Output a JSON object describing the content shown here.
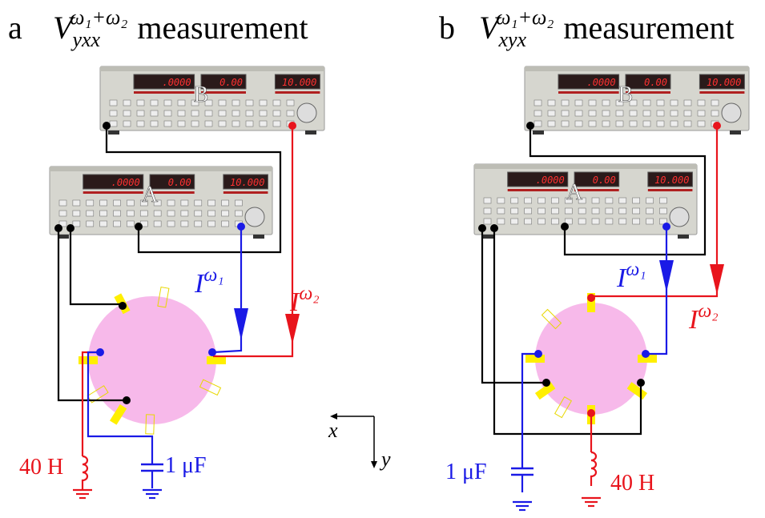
{
  "panels": [
    {
      "label": "a",
      "title": {
        "symbol": "V",
        "subscript": "yxx",
        "superscript": "ω₁+ω₂",
        "text": "measurement"
      },
      "instruments": [
        {
          "label": "B",
          "displays": [
            ".0000",
            "0.00",
            "10.000"
          ]
        },
        {
          "label": "A",
          "displays": [
            ".0000",
            "0.00",
            "10.000"
          ]
        }
      ],
      "currents": [
        {
          "symbol": "I",
          "superscript": "ω₁"
        },
        {
          "symbol": "I",
          "superscript": "ω₂"
        }
      ],
      "inductor": "40 H",
      "capacitor": "1 μF"
    },
    {
      "label": "b",
      "title": {
        "symbol": "V",
        "subscript": "xyx",
        "superscript": "ω₁+ω₂",
        "text": "measurement"
      },
      "instruments": [
        {
          "label": "B",
          "displays": [
            ".0000",
            "0.00",
            "10.000"
          ]
        },
        {
          "label": "A",
          "displays": [
            ".0000",
            "0.00",
            "10.000"
          ]
        }
      ],
      "currents": [
        {
          "symbol": "I",
          "superscript": "ω₁"
        },
        {
          "symbol": "I",
          "superscript": "ω₂"
        }
      ],
      "inductor": "40 H",
      "capacitor": "1 μF"
    }
  ],
  "axes": {
    "x": "x",
    "y": "y"
  }
}
